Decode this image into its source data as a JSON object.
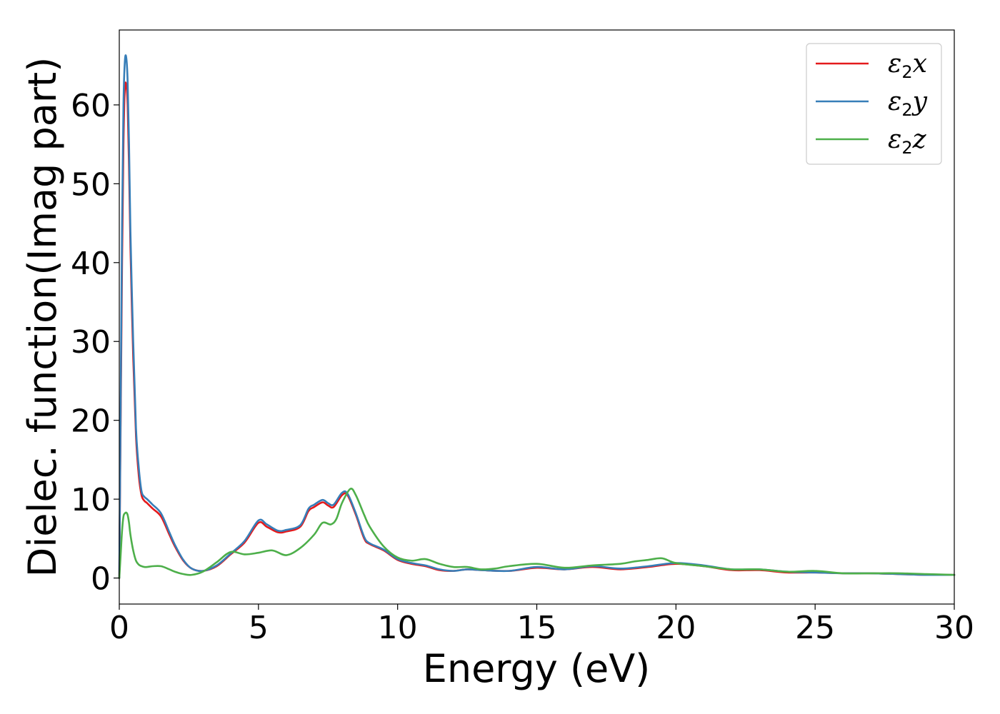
{
  "chart_data": {
    "type": "line",
    "title": "",
    "xlabel": "Energy (eV)",
    "ylabel": "Dielec. function(Imag part)",
    "xlim": [
      0,
      30
    ],
    "ylim": [
      -3.3,
      69.5
    ],
    "xticks": [
      "0",
      "5",
      "10",
      "15",
      "20",
      "25",
      "30"
    ],
    "yticks": [
      "0",
      "10",
      "20",
      "30",
      "40",
      "50",
      "60"
    ],
    "grid": false,
    "legend_position": "top-right",
    "series": [
      {
        "name": "ε2x",
        "legend": {
          "main": "ε",
          "sub": "2",
          "tail": "x"
        },
        "color": "#e41a1c",
        "x": [
          0,
          0.05,
          0.1,
          0.15,
          0.2,
          0.25,
          0.3,
          0.35,
          0.4,
          0.5,
          0.6,
          0.7,
          0.8,
          0.9,
          1.0,
          1.2,
          1.5,
          1.8,
          2.0,
          2.3,
          2.6,
          3.0,
          3.5,
          4.0,
          4.5,
          5.0,
          5.3,
          5.7,
          6.0,
          6.5,
          6.8,
          7.0,
          7.3,
          7.5,
          7.7,
          8.0,
          8.2,
          8.5,
          8.8,
          9.0,
          9.5,
          10.0,
          10.5,
          11.0,
          11.5,
          12.0,
          12.5,
          13.0,
          14.0,
          15.0,
          16.0,
          17.0,
          18.0,
          19.0,
          20.0,
          21.0,
          22.0,
          23.0,
          24.0,
          25.0,
          26.0,
          27.0,
          28.0,
          29.0,
          30.0
        ],
        "y": [
          0,
          20,
          40,
          55,
          62,
          62.5,
          60,
          52,
          42,
          28,
          18,
          13,
          10.5,
          9.8,
          9.5,
          8.8,
          7.8,
          5.5,
          4.0,
          2.2,
          1.2,
          0.9,
          1.5,
          3.0,
          4.5,
          7.0,
          6.5,
          5.8,
          5.9,
          6.5,
          8.5,
          9.0,
          9.6,
          9.2,
          9.0,
          10.5,
          10.5,
          8.0,
          5.0,
          4.3,
          3.5,
          2.3,
          1.8,
          1.5,
          1.0,
          0.9,
          1.1,
          1.0,
          0.9,
          1.3,
          1.1,
          1.4,
          1.1,
          1.4,
          1.8,
          1.5,
          1.0,
          1.0,
          0.7,
          0.7,
          0.6,
          0.6,
          0.5,
          0.4,
          0.4
        ]
      },
      {
        "name": "ε2y",
        "legend": {
          "main": "ε",
          "sub": "2",
          "tail": "y"
        },
        "color": "#377eb8",
        "x": [
          0,
          0.05,
          0.1,
          0.15,
          0.2,
          0.25,
          0.3,
          0.35,
          0.4,
          0.5,
          0.6,
          0.7,
          0.8,
          0.9,
          1.0,
          1.2,
          1.5,
          1.8,
          2.0,
          2.3,
          2.6,
          3.0,
          3.5,
          4.0,
          4.5,
          5.0,
          5.3,
          5.7,
          6.0,
          6.5,
          6.8,
          7.0,
          7.3,
          7.5,
          7.7,
          8.0,
          8.2,
          8.5,
          8.8,
          9.0,
          9.5,
          10.0,
          10.5,
          11.0,
          11.5,
          12.0,
          12.5,
          13.0,
          14.0,
          15.0,
          16.0,
          17.0,
          18.0,
          19.0,
          20.0,
          21.0,
          22.0,
          23.0,
          24.0,
          25.0,
          26.0,
          27.0,
          28.0,
          29.0,
          30.0
        ],
        "y": [
          0,
          22,
          45,
          60,
          65.5,
          66,
          63,
          55,
          44,
          30,
          19,
          14,
          11,
          10.3,
          10,
          9.3,
          8.2,
          5.8,
          4.2,
          2.3,
          1.2,
          0.9,
          1.6,
          3.1,
          4.7,
          7.3,
          6.8,
          6.0,
          6.1,
          6.7,
          8.8,
          9.3,
          9.9,
          9.5,
          9.3,
          10.8,
          10.7,
          8.2,
          5.2,
          4.4,
          3.6,
          2.4,
          1.9,
          1.6,
          1.1,
          0.9,
          1.1,
          1.0,
          0.9,
          1.4,
          1.1,
          1.5,
          1.2,
          1.5,
          1.9,
          1.6,
          1.1,
          1.1,
          0.8,
          0.7,
          0.6,
          0.6,
          0.5,
          0.4,
          0.4
        ]
      },
      {
        "name": "ε2z",
        "legend": {
          "main": "ε",
          "sub": "2",
          "tail": "z"
        },
        "color": "#4daf4a",
        "x": [
          0,
          0.05,
          0.1,
          0.15,
          0.2,
          0.25,
          0.3,
          0.35,
          0.4,
          0.5,
          0.6,
          0.7,
          0.8,
          0.9,
          1.0,
          1.2,
          1.5,
          1.8,
          2.0,
          2.3,
          2.6,
          3.0,
          3.5,
          4.0,
          4.5,
          5.0,
          5.5,
          6.0,
          6.5,
          7.0,
          7.3,
          7.6,
          7.8,
          8.0,
          8.3,
          8.5,
          8.8,
          9.0,
          9.5,
          10.0,
          10.5,
          11.0,
          11.5,
          12.0,
          12.5,
          13.0,
          13.5,
          14.0,
          15.0,
          16.0,
          17.0,
          18.0,
          18.5,
          19.0,
          19.5,
          20.0,
          21.0,
          22.0,
          23.0,
          24.0,
          25.0,
          26.0,
          27.0,
          28.0,
          29.0,
          30.0
        ],
        "y": [
          0,
          3,
          6,
          7.8,
          8.2,
          8.3,
          8.0,
          7.0,
          5.5,
          3.5,
          2.2,
          1.7,
          1.5,
          1.4,
          1.4,
          1.5,
          1.5,
          1.1,
          0.8,
          0.5,
          0.4,
          0.8,
          2.0,
          3.3,
          3.0,
          3.2,
          3.5,
          2.9,
          3.8,
          5.5,
          7.0,
          6.8,
          7.5,
          9.5,
          11.3,
          10.5,
          8.0,
          6.5,
          4.0,
          2.6,
          2.2,
          2.4,
          1.8,
          1.4,
          1.4,
          1.1,
          1.2,
          1.5,
          1.8,
          1.3,
          1.6,
          1.8,
          2.1,
          2.3,
          2.5,
          1.9,
          1.5,
          1.1,
          1.1,
          0.8,
          0.9,
          0.6,
          0.6,
          0.6,
          0.5,
          0.4
        ]
      }
    ]
  }
}
